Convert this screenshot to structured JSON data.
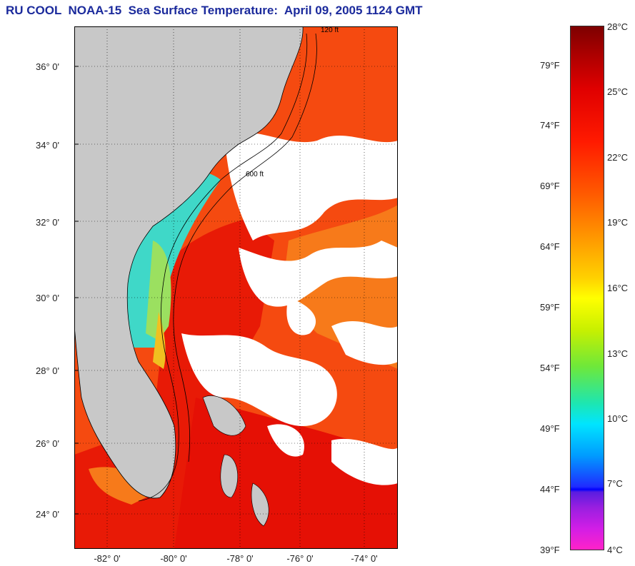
{
  "title": "RU COOL  NOAA-15  Sea Surface Temperature:  April 09, 2005 1124 GMT",
  "map": {
    "lat_labels": [
      "36° 0'",
      "34° 0'",
      "32° 0'",
      "30° 0'",
      "28° 0'",
      "26° 0'",
      "24° 0'"
    ],
    "lon_labels": [
      "-82° 0'",
      "-80° 0'",
      "-78° 0'",
      "-76° 0'",
      "-74° 0'"
    ],
    "isobath_labels": [
      "120 ft",
      "600 ft"
    ],
    "colors": {
      "land": "#c8c8c8",
      "clouds": "#ffffff",
      "warm": "#f53a00",
      "hot": "#e50c00",
      "cool": "#38c8d8"
    }
  },
  "colorbar": {
    "celsius": [
      "28°C",
      "25°C",
      "22°C",
      "19°C",
      "16°C",
      "13°C",
      "10°C",
      "7°C",
      "4°C"
    ],
    "fahrenheit": [
      "79°F",
      "74°F",
      "69°F",
      "64°F",
      "59°F",
      "54°F",
      "49°F",
      "44°F",
      "39°F"
    ]
  }
}
